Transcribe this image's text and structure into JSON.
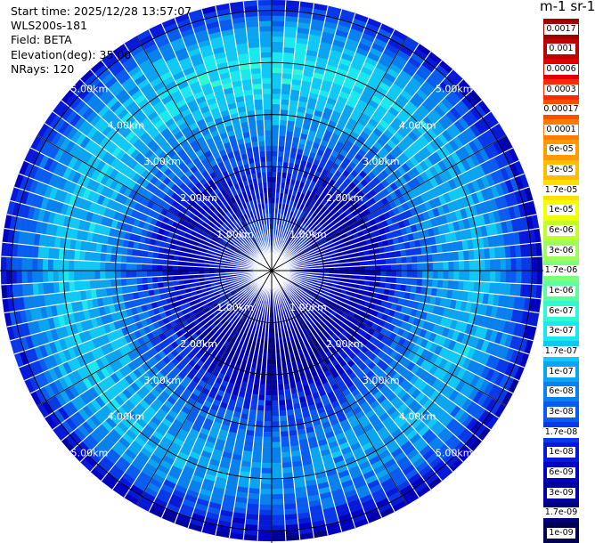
{
  "info": {
    "start_time": "Start time: 2025/12/28 13:57:07",
    "instrument": "WLS200s-181",
    "field": "Field: BETA",
    "elevation": "Elevation(deg): 35.00",
    "nrays": "NRays: 120"
  },
  "colorbar": {
    "unit_title": "m-1 sr-1",
    "labels": [
      "0.0017",
      "0.001",
      "0.0006",
      "0.0003",
      "0.00017",
      "0.0001",
      "6e-05",
      "3e-05",
      "1.7e-05",
      "1e-05",
      "6e-06",
      "3e-06",
      "1.7e-06",
      "1e-06",
      "6e-07",
      "3e-07",
      "1.7e-07",
      "1e-07",
      "6e-08",
      "3e-08",
      "1.7e-08",
      "1e-08",
      "6e-09",
      "3e-09",
      "1.7e-09",
      "1e-09"
    ],
    "colors": [
      "#a00000",
      "#c00000",
      "#e00000",
      "#ff2a00",
      "#ff4e00",
      "#ff7a00",
      "#ff9a00",
      "#ffbd00",
      "#ffe000",
      "#f2ff00",
      "#c2ff2a",
      "#9cff5a",
      "#7dff7a",
      "#5cffa0",
      "#30f8d2",
      "#1ae8ef",
      "#10c8f5",
      "#0aa4f0",
      "#0880ee",
      "#0a5cf0",
      "#0838e8",
      "#0618d8",
      "#0000c2",
      "#00009e",
      "#000078",
      "#000050"
    ]
  },
  "chart_data": {
    "type": "heatmap",
    "projection": "polar PPI",
    "title": "",
    "field": "BETA",
    "elevation_deg": 35.0,
    "nrays": 120,
    "range_rings_km": [
      1.0,
      2.0,
      3.0,
      4.0,
      5.0
    ],
    "ring_labels": [
      "1.00km",
      "2.00km",
      "3.00km",
      "4.00km",
      "5.00km"
    ],
    "max_range_km": 5.2,
    "spokes_deg": [
      0,
      30,
      60,
      90,
      120,
      150,
      180,
      210,
      240,
      270,
      300,
      330
    ],
    "colorscale": "log10",
    "radial_profile_log10": [
      {
        "range_km": 0.0,
        "log10_beta": -7.9
      },
      {
        "range_km": 0.5,
        "log10_beta": -7.9
      },
      {
        "range_km": 1.0,
        "log10_beta": -8.0
      },
      {
        "range_km": 1.5,
        "log10_beta": -8.25
      },
      {
        "range_km": 2.0,
        "log10_beta": -8.05
      },
      {
        "range_km": 2.5,
        "log10_beta": -7.6
      },
      {
        "range_km": 3.0,
        "log10_beta": -7.2
      },
      {
        "range_km": 3.5,
        "log10_beta": -6.9
      },
      {
        "range_km": 4.0,
        "log10_beta": -6.8
      },
      {
        "range_km": 4.5,
        "log10_beta": -7.1
      },
      {
        "range_km": 5.0,
        "log10_beta": -7.8
      },
      {
        "range_km": 5.2,
        "log10_beta": -8.2
      }
    ]
  }
}
